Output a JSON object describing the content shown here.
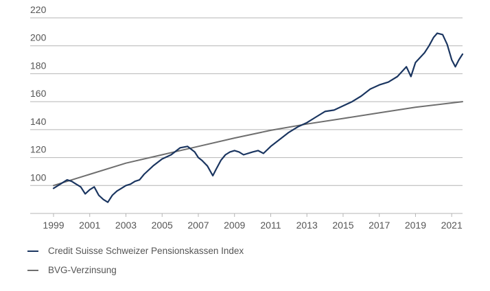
{
  "chart_data": {
    "type": "line",
    "title": "",
    "xlabel": "",
    "ylabel": "",
    "xlim": [
      1999,
      2021.6
    ],
    "ylim": [
      80,
      220
    ],
    "grid": true,
    "legend_placement": "bottom-left",
    "x_ticks": [
      "1999",
      "2001",
      "2003",
      "2005",
      "2007",
      "2009",
      "2011",
      "2013",
      "2015",
      "2017",
      "2019",
      "2021"
    ],
    "y_ticks": [
      "100",
      "120",
      "140",
      "160",
      "180",
      "200",
      "220"
    ],
    "y_tick_values": [
      100,
      120,
      140,
      160,
      180,
      200,
      220
    ],
    "series": [
      {
        "name": "Credit Suisse Schweizer Pensionskassen Index",
        "color": "#1a3560",
        "x": [
          1999.0,
          1999.25,
          1999.5,
          1999.75,
          2000.0,
          2000.25,
          2000.5,
          2000.75,
          2001.0,
          2001.25,
          2001.5,
          2001.75,
          2002.0,
          2002.25,
          2002.5,
          2002.75,
          2003.0,
          2003.25,
          2003.5,
          2003.75,
          2004.0,
          2004.5,
          2005.0,
          2005.5,
          2006.0,
          2006.4,
          2006.8,
          2007.0,
          2007.2,
          2007.5,
          2007.8,
          2008.0,
          2008.25,
          2008.5,
          2008.75,
          2009.0,
          2009.25,
          2009.5,
          2010.0,
          2010.3,
          2010.6,
          2011.0,
          2011.5,
          2012.0,
          2012.5,
          2013.0,
          2013.5,
          2014.0,
          2014.5,
          2015.0,
          2015.5,
          2016.0,
          2016.5,
          2017.0,
          2017.5,
          2018.0,
          2018.5,
          2018.75,
          2019.0,
          2019.5,
          2019.75,
          2020.0,
          2020.2,
          2020.5,
          2020.75,
          2021.0,
          2021.2,
          2021.4,
          2021.6
        ],
        "values": [
          98,
          100,
          102,
          104,
          103,
          101,
          99,
          94,
          97,
          99,
          93,
          90,
          88,
          93,
          96,
          98,
          100,
          101,
          103,
          104,
          108,
          114,
          119,
          122,
          127,
          128,
          124,
          120,
          118,
          114,
          107,
          112,
          118,
          122,
          124,
          125,
          124,
          122,
          124,
          125,
          123,
          128,
          133,
          138,
          142,
          145,
          149,
          153,
          154,
          157,
          160,
          164,
          169,
          172,
          174,
          178,
          185,
          178,
          188,
          195,
          200,
          206,
          209,
          208,
          201,
          190,
          185,
          190,
          194
        ]
      },
      {
        "name": "BVG-Verzinsung",
        "color": "#6e6e6e",
        "x": [
          1999,
          2001,
          2003,
          2005,
          2007,
          2009,
          2011,
          2013,
          2015,
          2017,
          2019,
          2021.6
        ],
        "values": [
          100,
          108,
          116,
          122,
          128,
          134,
          139.5,
          144,
          148,
          152,
          156,
          160
        ]
      }
    ]
  }
}
